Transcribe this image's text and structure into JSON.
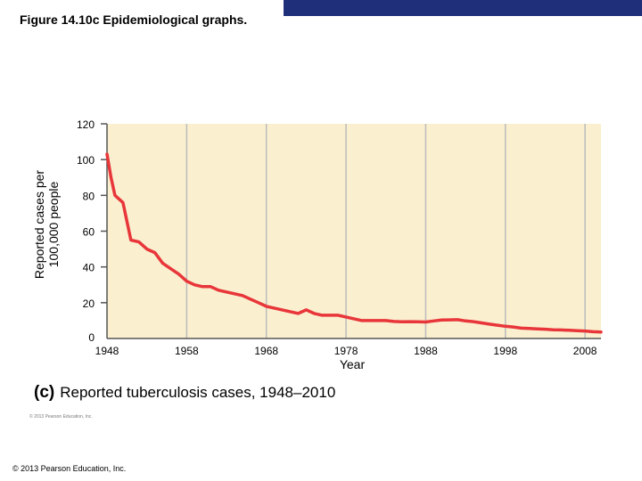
{
  "slide": {
    "title": "Figure 14.10c Epidemiological graphs.",
    "copyright": "© 2013 Pearson Education, Inc.",
    "small_print": "© 2013 Pearson Education, Inc."
  },
  "caption": {
    "part": "(c)",
    "text": "Reported tuberculosis cases, 1948–2010"
  },
  "colors": {
    "plot_bg": "#faf0d0",
    "line": "#e8363a",
    "grid": "#bbbbbb",
    "header_bar": "#1f2f7a"
  },
  "chart_data": {
    "type": "line",
    "title": "Reported tuberculosis cases, 1948–2010",
    "xlabel": "Year",
    "ylabel": "Reported cases per 100,000 people",
    "xlim": [
      1948,
      2010
    ],
    "ylim": [
      0,
      120
    ],
    "xticks": [
      1948,
      1958,
      1968,
      1978,
      1988,
      1998,
      2008
    ],
    "yticks": [
      0,
      20,
      40,
      60,
      80,
      100,
      120
    ],
    "grid": true,
    "x": [
      1948,
      1948.5,
      1949,
      1950,
      1951,
      1952,
      1953,
      1954,
      1955,
      1956,
      1957,
      1958,
      1959,
      1960,
      1961,
      1962,
      1963,
      1964,
      1965,
      1966,
      1967,
      1968,
      1969,
      1970,
      1971,
      1972,
      1973,
      1974,
      1975,
      1976,
      1977,
      1978,
      1979,
      1980,
      1981,
      1982,
      1983,
      1984,
      1985,
      1986,
      1987,
      1988,
      1989,
      1990,
      1991,
      1992,
      1993,
      1994,
      1995,
      1996,
      1997,
      1998,
      1999,
      2000,
      2001,
      2002,
      2003,
      2004,
      2005,
      2006,
      2007,
      2008,
      2009,
      2010
    ],
    "y": [
      103,
      90,
      80,
      76,
      55,
      54,
      50,
      48,
      42,
      39,
      36,
      32,
      30,
      29,
      29,
      27,
      26,
      25,
      24,
      22,
      20,
      18,
      17,
      16,
      15,
      14,
      16,
      14,
      13,
      13,
      13,
      12,
      11,
      10,
      10,
      10,
      10,
      9.5,
      9.3,
      9.4,
      9.3,
      9.2,
      9.8,
      10.3,
      10.4,
      10.5,
      9.8,
      9.4,
      8.7,
      8.0,
      7.4,
      6.8,
      6.4,
      5.8,
      5.6,
      5.4,
      5.2,
      4.9,
      4.8,
      4.6,
      4.4,
      4.2,
      3.8,
      3.6
    ]
  }
}
